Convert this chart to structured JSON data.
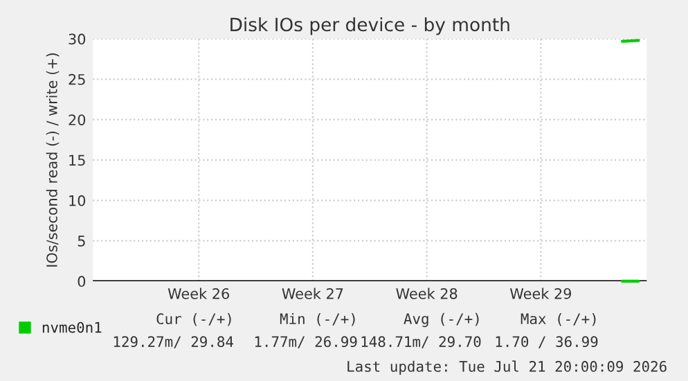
{
  "chart_data": {
    "type": "line",
    "title": "Disk IOs per device - by month",
    "ylabel": "IOs/second read (-) / write (+)",
    "categories": [
      null,
      null,
      null,
      null,
      null,
      null,
      "Week 26",
      null,
      null,
      null,
      null,
      null,
      null,
      "Week 27",
      null,
      null,
      null,
      null,
      null,
      null,
      "Week 28",
      null,
      null,
      null,
      null,
      null,
      null,
      "Week 29",
      null,
      null,
      null,
      null,
      null,
      null
    ],
    "ylim": [
      0,
      30
    ],
    "yticks": [
      0,
      5,
      10,
      15,
      20,
      25,
      30
    ],
    "grid": true,
    "legend": "bottom",
    "series": [
      {
        "name": "nvme0n1",
        "color": "#00cc00",
        "values": [
          null,
          null,
          null,
          null,
          null,
          null,
          null,
          null,
          null,
          null,
          null,
          null,
          null,
          null,
          null,
          null,
          null,
          null,
          null,
          null,
          null,
          null,
          null,
          null,
          null,
          null,
          null,
          null,
          null,
          null,
          null,
          null,
          29.7,
          29.8
        ]
      },
      {
        "color": "#00cc00",
        "values": [
          null,
          null,
          null,
          null,
          null,
          null,
          null,
          null,
          null,
          null,
          null,
          null,
          null,
          null,
          null,
          null,
          null,
          null,
          null,
          null,
          null,
          null,
          null,
          null,
          null,
          null,
          null,
          null,
          null,
          null,
          null,
          null,
          0,
          0
        ]
      }
    ],
    "annotations": [
      "Cur (-/+)",
      "Min (-/+)",
      "Avg (-/+)",
      "Max (-/+)",
      "129.27m/ 29.84",
      "1.77m/ 26.99",
      "148.71m/ 29.70",
      "1.70 / 36.99",
      "Last update: Tue Jul 21 20:00:09 2026"
    ]
  }
}
